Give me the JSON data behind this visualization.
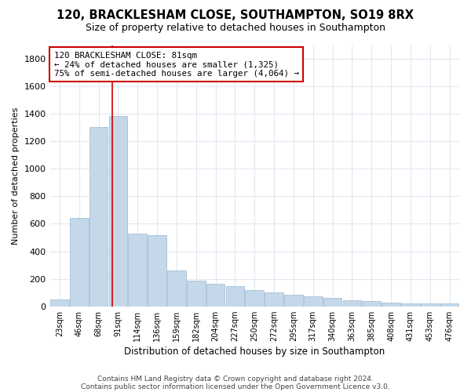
{
  "title": "120, BRACKLESHAM CLOSE, SOUTHAMPTON, SO19 8RX",
  "subtitle": "Size of property relative to detached houses in Southampton",
  "xlabel": "Distribution of detached houses by size in Southampton",
  "ylabel": "Number of detached properties",
  "footer_line1": "Contains HM Land Registry data © Crown copyright and database right 2024.",
  "footer_line2": "Contains public sector information licensed under the Open Government Licence v3.0.",
  "annotation_title": "120 BRACKLESHAM CLOSE: 81sqm",
  "annotation_line1": "← 24% of detached houses are smaller (1,325)",
  "annotation_line2": "75% of semi-detached houses are larger (4,064) →",
  "bar_color": "#c5d8ea",
  "bar_edge_color": "#9ab8d0",
  "vline_color": "#cc0000",
  "annotation_box_color": "#cc0000",
  "categories": [
    "23sqm",
    "46sqm",
    "68sqm",
    "91sqm",
    "114sqm",
    "136sqm",
    "159sqm",
    "182sqm",
    "204sqm",
    "227sqm",
    "250sqm",
    "272sqm",
    "295sqm",
    "317sqm",
    "340sqm",
    "363sqm",
    "385sqm",
    "408sqm",
    "431sqm",
    "453sqm",
    "476sqm"
  ],
  "values": [
    50,
    640,
    1305,
    1385,
    530,
    520,
    262,
    185,
    165,
    148,
    120,
    100,
    82,
    72,
    62,
    42,
    40,
    28,
    22,
    22,
    22
  ],
  "ylim": [
    0,
    1900
  ],
  "yticks": [
    0,
    200,
    400,
    600,
    800,
    1000,
    1200,
    1400,
    1600,
    1800
  ],
  "vline_x_index": 2.72,
  "background_color": "#ffffff",
  "plot_bg_color": "#ffffff",
  "grid_color": "#e0e8f0"
}
